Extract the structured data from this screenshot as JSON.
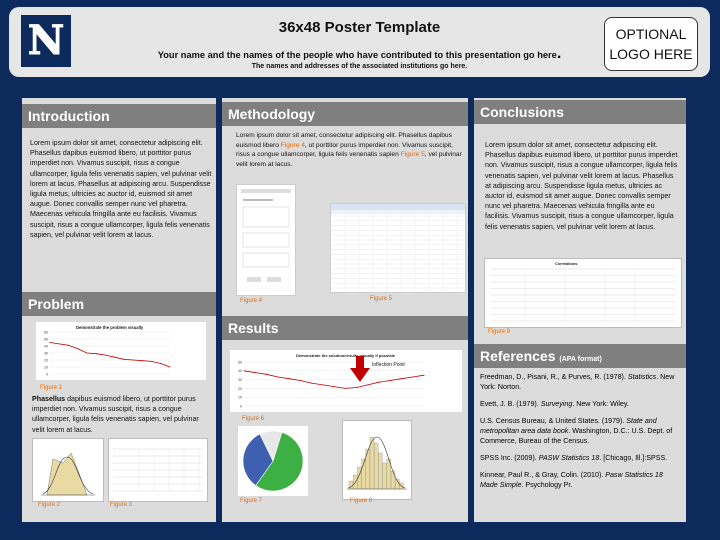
{
  "header": {
    "title": "36x48 Poster Template",
    "authors": "Your name and the names of the people who have contributed to this presentation go here",
    "authors_end": ".",
    "institutions": "The names and addresses of the associated institutions go here.",
    "optional_logo": "OPTIONAL\nLOGO HERE",
    "logo_letter": "N",
    "colors": {
      "background": "#0c2b5c",
      "header": "#e6e6e6",
      "panel": "#dcdcdc",
      "section_head": "#7f7f7f",
      "figure_label": "#e46c0a",
      "arrow": "#c00000"
    }
  },
  "introduction": {
    "heading": "Introduction",
    "text": "Lorem ipsum dolor sit amet, consectetur adipiscing elit. Phasellus dapibus euismod libero, ut porttitor purus imperdiet non. Vivamus suscipit, risus a congue ullamcorper, ligula felis venenatis sapien, vel pulvinar velit lorem at lacus. Phasellus at adipiscing arcu. Suspendisse ligula metus, ultricies ac auctor id, euismod sit amet augue. Donec convallis semper nunc vel pharetra. Maecenas vehicula fringilla ante eu facilisis. Vivamus suscipit, risus a congue ullamcorper, ligula felis venenatis sapien, vel pulvinar velit lorem at lacus."
  },
  "problem": {
    "heading": "Problem",
    "chart_title": "Demonstrate the problem visually",
    "figure1_label": "Figure 1",
    "text_bold": "Phasellus",
    "text": " dapibus euismod libero, ut porttitor purus imperdiet non. Vivamus suscipit, risus a congue ullamcorper, ligula felis venenatis sapien, vel pulvinar velit lorem at lacus.",
    "figure2_label": "Figure 2",
    "figure3_label": "Figure 3"
  },
  "methodology": {
    "heading": "Methodology",
    "text_pre": "Lorem ipsum dolor sit amet, consectetur adipiscing elit. Phasellus dapibus euismod libero ",
    "text_fig4": "Figure 4",
    "text_mid": ", ut porttitor purus imperdiet non. Vivamus suscipit, risus a congue ullamcorper, ligula felis venenatis sapien ",
    "text_fig5": "Figure 5",
    "text_post": ", vel pulvinar velit lorem at lacus.",
    "figure4_label": "Figure 4",
    "figure5_label": "Figure 5"
  },
  "results": {
    "heading": "Results",
    "chart_title": "Demonstrate the solution/results visually if possible",
    "inflection": "Inflection Point",
    "figure6_label": "Figure 6",
    "figure7_label": "Figure 7",
    "figure8_label": "Figure 8"
  },
  "conclusions": {
    "heading": "Conclusions",
    "text": "Lorem ipsum dolor sit amet, consectetur adipiscing elit. Phasellus dapibus euismod libero, ut porttitor purus imperdiet non. Vivamus suscipit, risus a congue ullamcorper, ligula felis venenatis sapien, vel pulvinar velit lorem at lacus. Phasellus at adipiscing arcu. Suspendisse ligula metus, ultricies ac auctor id, euismod sit amet augue. Donec convallis semper nunc vel pharetra. Maecenas vehicula fringilla ante eu facilisis. Vivamus suscipit, risus a congue ullamcorper, ligula felis venenatis sapien, vel pulvinar velit lorem at lacus.",
    "table_title": "Correlations",
    "figure9_label": "Figure 9"
  },
  "references": {
    "heading": "References",
    "subheading": "(APA format)",
    "items": [
      {
        "pre": "Freedman, D., Pisani, R., & Purves, R. (1978). ",
        "ital": "Statistics",
        "post": ". New York: Norton."
      },
      {
        "pre": "Evett, J. B. (1979). ",
        "ital": "Surveying",
        "post": ". New York: Wiley."
      },
      {
        "pre": "U.S. Census Bureau, & United States. (1979). ",
        "ital": "State and metropolitan area data book",
        "post": ". Washington, D.C.: U.S. Dept. of Commerce, Bureau of the Census."
      },
      {
        "pre": "SPSS Inc. (2009). ",
        "ital": "PASW Statistics 18",
        "post": ". [Chicago, Ill.]:SPSS."
      },
      {
        "pre": "Kinnear, Paul R., & Gray, Colin. (2010). ",
        "ital": "Pasw Statistics 18 Made Simple",
        "post": ". Psychology Pr."
      }
    ]
  },
  "chart_data": [
    {
      "type": "line",
      "title": "Demonstrate the problem visually",
      "x": [
        1,
        2,
        3,
        4,
        5,
        6,
        7,
        8,
        9,
        10,
        11,
        12,
        13,
        14
      ],
      "series": [
        {
          "values": [
            45,
            43,
            41,
            36,
            30,
            29,
            27,
            24,
            21,
            20,
            19,
            18,
            15,
            10
          ]
        }
      ],
      "ylim": [
        0,
        60
      ],
      "yticks": [
        "60",
        "50",
        "40",
        "30",
        "20",
        "10",
        "0"
      ]
    },
    {
      "type": "line",
      "title": "Demonstrate the solution/results visually if possible",
      "x": [
        1,
        2,
        3,
        4,
        5,
        6,
        7,
        8,
        9,
        10,
        11,
        12,
        13,
        14,
        15,
        16,
        17
      ],
      "series": [
        {
          "values": [
            40,
            38,
            36,
            33,
            31,
            29,
            26,
            24,
            22,
            20,
            21,
            24,
            27,
            29,
            31,
            33,
            35
          ]
        }
      ],
      "ylim": [
        0,
        50
      ],
      "yticks": [
        "50",
        "40",
        "30",
        "20",
        "10",
        "0"
      ]
    },
    {
      "type": "pie",
      "slices": [
        {
          "value": 55,
          "color": "#3cb043"
        },
        {
          "value": 33,
          "color": "#3f5fb0"
        },
        {
          "value": 12,
          "color": "#e8e8e8"
        }
      ]
    }
  ]
}
